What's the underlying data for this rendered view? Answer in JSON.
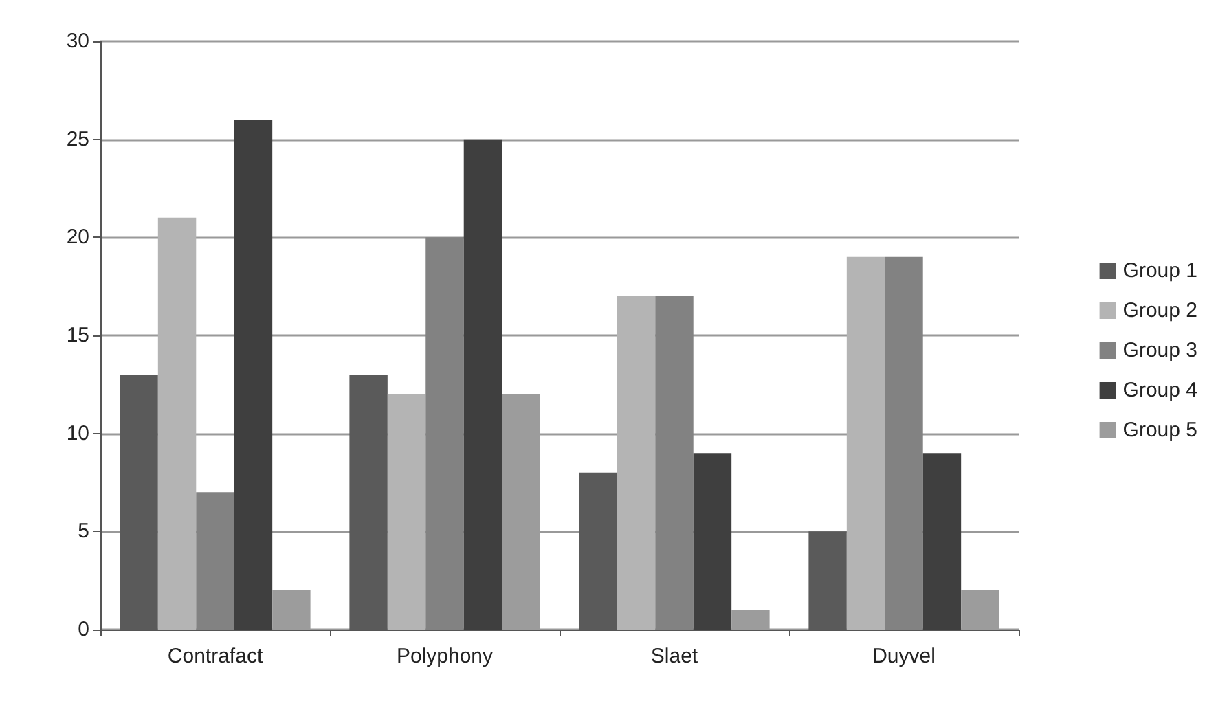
{
  "chart_data": {
    "type": "bar",
    "categories": [
      "Contrafact",
      "Polyphony",
      "Slaet",
      "Duyvel"
    ],
    "series": [
      {
        "name": "Group 1",
        "color": "#5a5a5a",
        "values": [
          13,
          13,
          8,
          5
        ]
      },
      {
        "name": "Group 2",
        "color": "#b4b4b4",
        "values": [
          21,
          12,
          17,
          19
        ]
      },
      {
        "name": "Group 3",
        "color": "#828282",
        "values": [
          7,
          20,
          17,
          19
        ]
      },
      {
        "name": "Group 4",
        "color": "#3f3f3f",
        "values": [
          26,
          25,
          9,
          9
        ]
      },
      {
        "name": "Group 5",
        "color": "#9c9c9c",
        "values": [
          2,
          12,
          1,
          2
        ]
      }
    ],
    "ylim": [
      0,
      30
    ],
    "yticks": [
      0,
      5,
      10,
      15,
      20,
      25,
      30
    ],
    "grid": "y",
    "legend": "right"
  }
}
